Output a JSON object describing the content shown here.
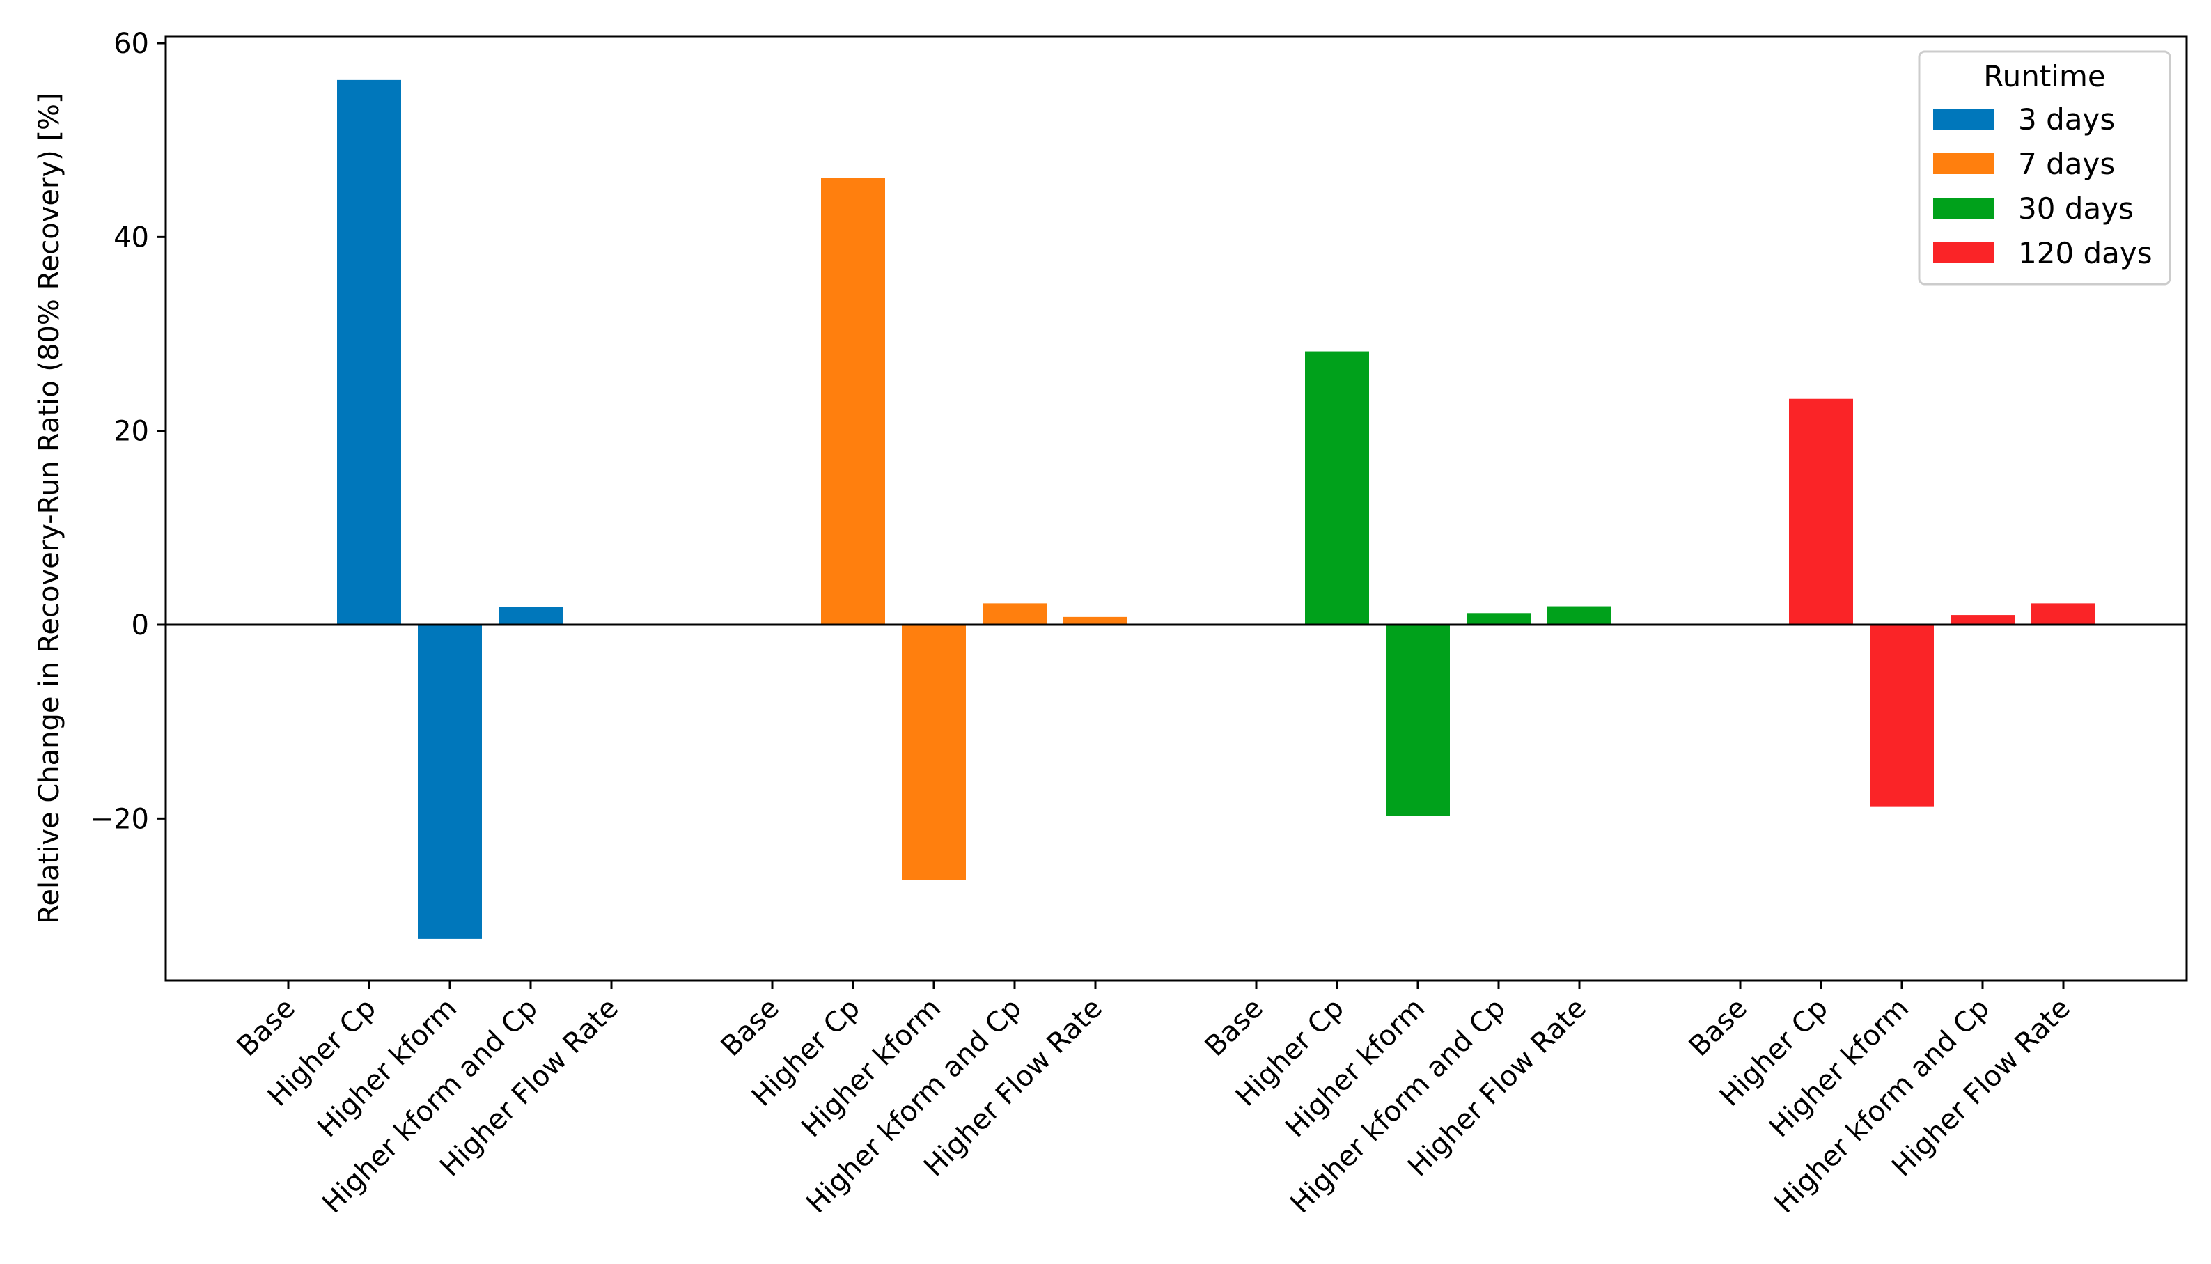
{
  "chart_data": {
    "type": "bar",
    "title": "",
    "ylabel": "Relative Change in Recovery-Run Ratio (80% Recovery) [%]",
    "xlabel": "",
    "ylim": [
      -37,
      61
    ],
    "yticks": [
      -20,
      0,
      20,
      40,
      60
    ],
    "ytick_labels": [
      "−20",
      "0",
      "20",
      "40",
      "60"
    ],
    "categories": [
      "Base",
      "Higher Cp",
      "Higher kform",
      "Higher kform and Cp",
      "Higher Flow Rate"
    ],
    "legend": {
      "title": "Runtime",
      "position": "top-right"
    },
    "series": [
      {
        "name": "3 days",
        "color": "#0077bb",
        "values": [
          0,
          56.2,
          -32.4,
          1.8,
          0
        ]
      },
      {
        "name": "7 days",
        "color": "#ff7f0e",
        "values": [
          0,
          46.1,
          -26.3,
          2.2,
          0.8
        ]
      },
      {
        "name": "30 days",
        "color": "#00a11b",
        "values": [
          0,
          28.2,
          -19.7,
          1.2,
          1.9
        ]
      },
      {
        "name": "120 days",
        "color": "#fa2427",
        "values": [
          0,
          23.3,
          -18.8,
          1.0,
          2.2
        ]
      }
    ]
  }
}
